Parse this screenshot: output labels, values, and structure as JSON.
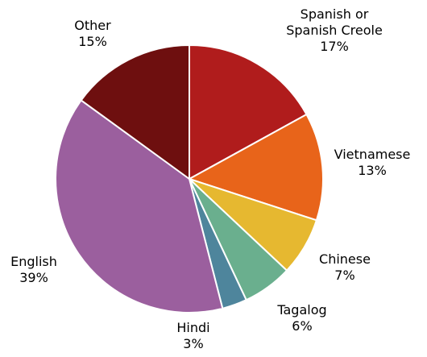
{
  "chart_data": {
    "type": "pie",
    "categories": [
      "Spanish or Spanish Creole",
      "Vietnamese",
      "Chinese",
      "Tagalog",
      "Hindi",
      "English",
      "Other"
    ],
    "values": [
      17,
      13,
      7,
      6,
      3,
      39,
      15
    ],
    "value_labels": [
      "17%",
      "13%",
      "7%",
      "6%",
      "3%",
      "39%",
      "15%"
    ],
    "colors": [
      "#b01c1c",
      "#e8641a",
      "#e6b830",
      "#6aaf8e",
      "#4e859c",
      "#9b5f9e",
      "#6e0f0f"
    ]
  }
}
